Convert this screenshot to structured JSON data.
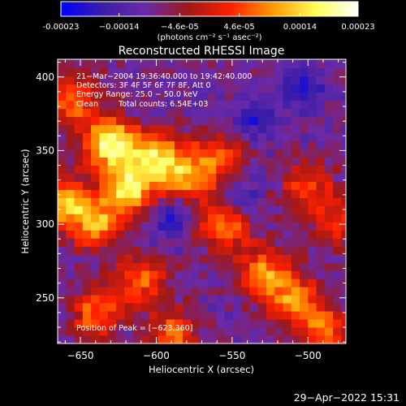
{
  "chart_data": {
    "type": "heatmap",
    "title": "Reconstructed RHESSI Image",
    "xlabel": "Heliocentric X (arcsec)",
    "ylabel": "Heliocentric Y (arcsec)",
    "xlim": [
      -665,
      -475
    ],
    "ylim": [
      219,
      412
    ],
    "x_ticks": [
      -650,
      -600,
      -550,
      -500
    ],
    "x_tick_labels": [
      "−650",
      "−600",
      "−550",
      "−500"
    ],
    "y_ticks": [
      250,
      300,
      350,
      400
    ],
    "y_tick_labels": [
      "250",
      "300",
      "350",
      "400"
    ],
    "colorbar": {
      "range": [
        -0.00023,
        0.00023
      ],
      "tick_labels": [
        "-0.00023",
        "−0.00014",
        "−4.6e-05",
        "4.6e-05",
        "0.00014",
        "0.00023"
      ],
      "tick_values": [
        -0.00023,
        -0.00014,
        -4.6e-05,
        4.6e-05,
        0.00014,
        0.00023
      ],
      "unit_label": "(photons cm⁻² s⁻¹ asec⁻²)",
      "colors": [
        "#0000ff",
        "#3b1ea8",
        "#6a2aa8",
        "#a01818",
        "#ff2000",
        "#ff9a00",
        "#ffff55",
        "#ffffff"
      ]
    },
    "annotations": {
      "time_range": "21−Mar−2004 19:36:40.000 to 19:42:40.000",
      "detectors": "Detectors: 3F 4F 5F 6F 7F 8F, Att 0",
      "energy_range": "Energy Range: 25.0 − 50.0 keV",
      "clean_label": "Clean",
      "total_counts": "Total counts: 6.54E+03",
      "peak": "Position of Peak = [−623,360]"
    },
    "peak_position": [
      -623,
      360
    ],
    "bright_sources": [
      {
        "x": -630,
        "y": 355,
        "level": 1.0
      },
      {
        "x": -618,
        "y": 325,
        "level": 0.85
      },
      {
        "x": -655,
        "y": 385,
        "level": 0.6
      },
      {
        "x": -640,
        "y": 300,
        "level": 0.65
      },
      {
        "x": -600,
        "y": 345,
        "level": 0.75
      },
      {
        "x": -580,
        "y": 330,
        "level": 0.6
      },
      {
        "x": -560,
        "y": 345,
        "level": 0.55
      },
      {
        "x": -555,
        "y": 300,
        "level": 0.7
      },
      {
        "x": -660,
        "y": 315,
        "level": 0.7
      },
      {
        "x": -640,
        "y": 240,
        "level": 0.55
      },
      {
        "x": -610,
        "y": 262,
        "level": 0.55
      },
      {
        "x": -530,
        "y": 268,
        "level": 0.6
      },
      {
        "x": -510,
        "y": 250,
        "level": 0.6
      },
      {
        "x": -490,
        "y": 228,
        "level": 0.55
      },
      {
        "x": -588,
        "y": 225,
        "level": 0.5
      },
      {
        "x": -500,
        "y": 325,
        "level": 0.45
      },
      {
        "x": -480,
        "y": 300,
        "level": 0.4
      }
    ],
    "dark_regions": [
      {
        "x": -535,
        "y": 370
      },
      {
        "x": -505,
        "y": 392
      },
      {
        "x": -590,
        "y": 305
      },
      {
        "x": -545,
        "y": 318
      }
    ]
  },
  "footer": {
    "timestamp": "29−Apr−2022 15:31"
  }
}
